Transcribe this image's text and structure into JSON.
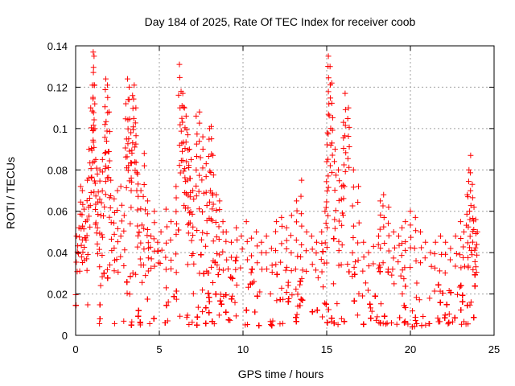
{
  "chart_data": {
    "type": "scatter",
    "title": "Day 184 of 2025, Rate Of TEC Index for receiver coob",
    "xlabel": "GPS time / hours",
    "ylabel": "ROTI / TECUs",
    "xlim": [
      0,
      25
    ],
    "ylim": [
      0,
      0.14
    ],
    "xticks": [
      0,
      5,
      10,
      15,
      20,
      25
    ],
    "xtick_labels": [
      "0",
      "5",
      "10",
      "15",
      "20",
      "25"
    ],
    "yticks": [
      0,
      0.02,
      0.04,
      0.06,
      0.08,
      0.1,
      0.12,
      0.14
    ],
    "ytick_labels": [
      "0",
      "0.02",
      "0.04",
      "0.06",
      "0.08",
      "0.1",
      "0.12",
      "0.14"
    ],
    "grid": true,
    "marker": "+",
    "color": "#ff0000",
    "series": [
      {
        "name": "ROTI",
        "x": [
          0.05,
          0.2,
          0.3,
          0.4,
          0.5,
          0.6,
          0.7,
          0.8,
          0.9,
          1.0,
          1.05,
          1.1,
          1.15,
          1.2,
          1.3,
          1.45,
          1.6,
          1.75,
          1.8,
          1.9,
          2.0,
          2.1,
          2.3,
          2.5,
          2.7,
          2.9,
          3.0,
          3.1,
          3.2,
          3.3,
          3.4,
          3.5,
          3.6,
          3.7,
          3.9,
          4.1,
          4.3,
          4.5,
          4.7,
          4.9,
          5.1,
          5.4,
          5.7,
          6.0,
          6.2,
          6.3,
          6.4,
          6.5,
          6.6,
          6.7,
          6.8,
          6.9,
          7.0,
          7.2,
          7.4,
          7.6,
          7.8,
          8.0,
          8.1,
          8.2,
          8.4,
          8.6,
          8.8,
          9.0,
          9.3,
          9.6,
          9.9,
          10.2,
          10.5,
          10.8,
          11.1,
          11.4,
          11.7,
          12.0,
          12.3,
          12.6,
          12.9,
          13.2,
          13.5,
          13.8,
          14.1,
          14.4,
          14.7,
          14.9,
          15.0,
          15.05,
          15.1,
          15.2,
          15.3,
          15.5,
          15.7,
          15.9,
          16.0,
          16.1,
          16.3,
          16.6,
          16.9,
          17.2,
          17.5,
          17.8,
          18.1,
          18.2,
          18.4,
          18.7,
          19.0,
          19.3,
          19.5,
          19.7,
          20.0,
          20.3,
          20.6,
          20.9,
          21.2,
          21.5,
          21.8,
          22.1,
          22.4,
          22.7,
          23.0,
          23.2,
          23.4,
          23.5,
          23.6,
          23.7,
          23.8,
          23.9,
          24.0
        ],
        "y": [
          0.048,
          0.052,
          0.072,
          0.07,
          0.061,
          0.055,
          0.075,
          0.09,
          0.11,
          0.121,
          0.137,
          0.135,
          0.1,
          0.085,
          0.078,
          0.08,
          0.085,
          0.102,
          0.124,
          0.121,
          0.108,
          0.075,
          0.066,
          0.07,
          0.072,
          0.058,
          0.112,
          0.124,
          0.12,
          0.098,
          0.116,
          0.121,
          0.11,
          0.078,
          0.07,
          0.088,
          0.065,
          0.048,
          0.06,
          0.045,
          0.05,
          0.061,
          0.055,
          0.072,
          0.131,
          0.118,
          0.117,
          0.11,
          0.106,
          0.097,
          0.09,
          0.085,
          0.07,
          0.106,
          0.108,
          0.096,
          0.083,
          0.1,
          0.101,
          0.087,
          0.068,
          0.065,
          0.055,
          0.05,
          0.045,
          0.052,
          0.048,
          0.055,
          0.047,
          0.05,
          0.045,
          0.048,
          0.042,
          0.055,
          0.057,
          0.052,
          0.058,
          0.065,
          0.075,
          0.05,
          0.048,
          0.045,
          0.05,
          0.06,
          0.084,
          0.098,
          0.135,
          0.13,
          0.122,
          0.09,
          0.08,
          0.072,
          0.103,
          0.117,
          0.11,
          0.08,
          0.072,
          0.045,
          0.04,
          0.043,
          0.048,
          0.065,
          0.068,
          0.062,
          0.05,
          0.048,
          0.052,
          0.055,
          0.06,
          0.057,
          0.05,
          0.045,
          0.04,
          0.045,
          0.048,
          0.045,
          0.042,
          0.048,
          0.055,
          0.05,
          0.068,
          0.08,
          0.087,
          0.073,
          0.062,
          0.056,
          0.05
        ]
      }
    ],
    "baseline": {
      "x": [
        0,
        0.5,
        1,
        2,
        3,
        4,
        5,
        6,
        7,
        8,
        9,
        10,
        11,
        12,
        13,
        14,
        15,
        16,
        17,
        18,
        19,
        20,
        21,
        22,
        23,
        24
      ],
      "y_low": [
        0.006,
        0.005,
        0.005,
        0.006,
        0.005,
        0.005,
        0.006,
        0.006,
        0.005,
        0.005,
        0.005,
        0.005,
        0.004,
        0.005,
        0.005,
        0.006,
        0.005,
        0.005,
        0.005,
        0.006,
        0.005,
        0.004,
        0.005,
        0.005,
        0.005,
        0.006
      ],
      "y_high": [
        0.045,
        0.05,
        0.055,
        0.05,
        0.052,
        0.05,
        0.045,
        0.055,
        0.058,
        0.048,
        0.038,
        0.035,
        0.035,
        0.03,
        0.035,
        0.032,
        0.045,
        0.05,
        0.035,
        0.032,
        0.035,
        0.03,
        0.028,
        0.03,
        0.032,
        0.035
      ]
    }
  }
}
